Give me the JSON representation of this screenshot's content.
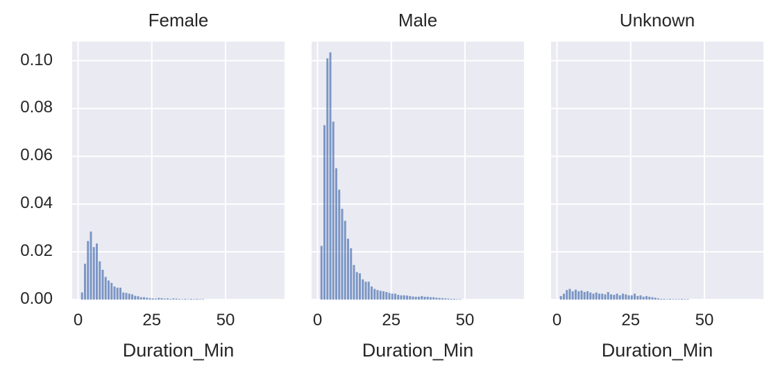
{
  "chart_data": {
    "type": "bar",
    "subtype": "faceted-histogram",
    "ylabel": "",
    "xlabel": "Duration_Min",
    "ylim": [
      0,
      0.108
    ],
    "xlim": [
      -2,
      70
    ],
    "yticks": [
      "0.00",
      "0.02",
      "0.04",
      "0.06",
      "0.08",
      "0.10"
    ],
    "ytick_values": [
      0,
      0.02,
      0.04,
      0.06,
      0.08,
      0.1
    ],
    "xticks": [
      "0",
      "25",
      "50"
    ],
    "xtick_values": [
      0,
      25,
      50
    ],
    "grid": true,
    "bar_color": "#4c72b0",
    "bin_width": 1,
    "panels": [
      {
        "title": "Female",
        "bin_starts": [
          1,
          2,
          3,
          4,
          5,
          6,
          7,
          8,
          9,
          10,
          11,
          12,
          13,
          14,
          15,
          16,
          17,
          18,
          19,
          20,
          21,
          22,
          23,
          24,
          25,
          26,
          27,
          28,
          29,
          30,
          31,
          32,
          33,
          34,
          35,
          36,
          37,
          38,
          39,
          40,
          41,
          42
        ],
        "values": [
          0.003,
          0.015,
          0.0245,
          0.0285,
          0.022,
          0.0235,
          0.016,
          0.0125,
          0.0095,
          0.008,
          0.007,
          0.0055,
          0.005,
          0.005,
          0.003,
          0.0028,
          0.0025,
          0.0022,
          0.0016,
          0.0014,
          0.001,
          0.001,
          0.0008,
          0.0006,
          0.0005,
          0.0004,
          0.0007,
          0.0006,
          0.0004,
          0.0005,
          0.0003,
          0.0005,
          0.0004,
          0.0003,
          0.0002,
          0.0003,
          0.0002,
          0.0003,
          0.0002,
          0.0003,
          0.0002,
          0.0002
        ]
      },
      {
        "title": "Male",
        "bin_starts": [
          1,
          2,
          3,
          4,
          5,
          6,
          7,
          8,
          9,
          10,
          11,
          12,
          13,
          14,
          15,
          16,
          17,
          18,
          19,
          20,
          21,
          22,
          23,
          24,
          25,
          26,
          27,
          28,
          29,
          30,
          31,
          32,
          33,
          34,
          35,
          36,
          37,
          38,
          39,
          40,
          41,
          42,
          43,
          44,
          45,
          46,
          47,
          48
        ],
        "values": [
          0.0225,
          0.073,
          0.101,
          0.1035,
          0.0745,
          0.055,
          0.046,
          0.038,
          0.033,
          0.0255,
          0.0215,
          0.0145,
          0.0115,
          0.011,
          0.0085,
          0.0075,
          0.0075,
          0.0055,
          0.0045,
          0.004,
          0.0037,
          0.0035,
          0.0032,
          0.0028,
          0.0025,
          0.0025,
          0.002,
          0.0018,
          0.0018,
          0.0017,
          0.0015,
          0.0013,
          0.0012,
          0.0012,
          0.0015,
          0.0012,
          0.0012,
          0.001,
          0.001,
          0.0008,
          0.0007,
          0.0006,
          0.0005,
          0.0004,
          0.0003,
          0.0003,
          0.0002,
          0.0002
        ]
      },
      {
        "title": "Unknown",
        "bin_starts": [
          1,
          2,
          3,
          4,
          5,
          6,
          7,
          8,
          9,
          10,
          11,
          12,
          13,
          14,
          15,
          16,
          17,
          18,
          19,
          20,
          21,
          22,
          23,
          24,
          25,
          26,
          27,
          28,
          29,
          30,
          31,
          32,
          33,
          34,
          35,
          36,
          37,
          38,
          39,
          40,
          41,
          42,
          43,
          44
        ],
        "values": [
          0.0015,
          0.0025,
          0.004,
          0.0045,
          0.0035,
          0.0042,
          0.0035,
          0.0038,
          0.0032,
          0.0035,
          0.003,
          0.0025,
          0.003,
          0.0025,
          0.0025,
          0.0022,
          0.0032,
          0.0022,
          0.002,
          0.0025,
          0.0018,
          0.0025,
          0.0022,
          0.0018,
          0.0018,
          0.0025,
          0.0015,
          0.0018,
          0.0012,
          0.0015,
          0.0012,
          0.001,
          0.0008,
          0.0005,
          0.0003,
          0.0003,
          0.0002,
          0.0003,
          0.0002,
          0.0002,
          0.0002,
          0.0003,
          0.0002,
          0.0002
        ]
      }
    ]
  }
}
